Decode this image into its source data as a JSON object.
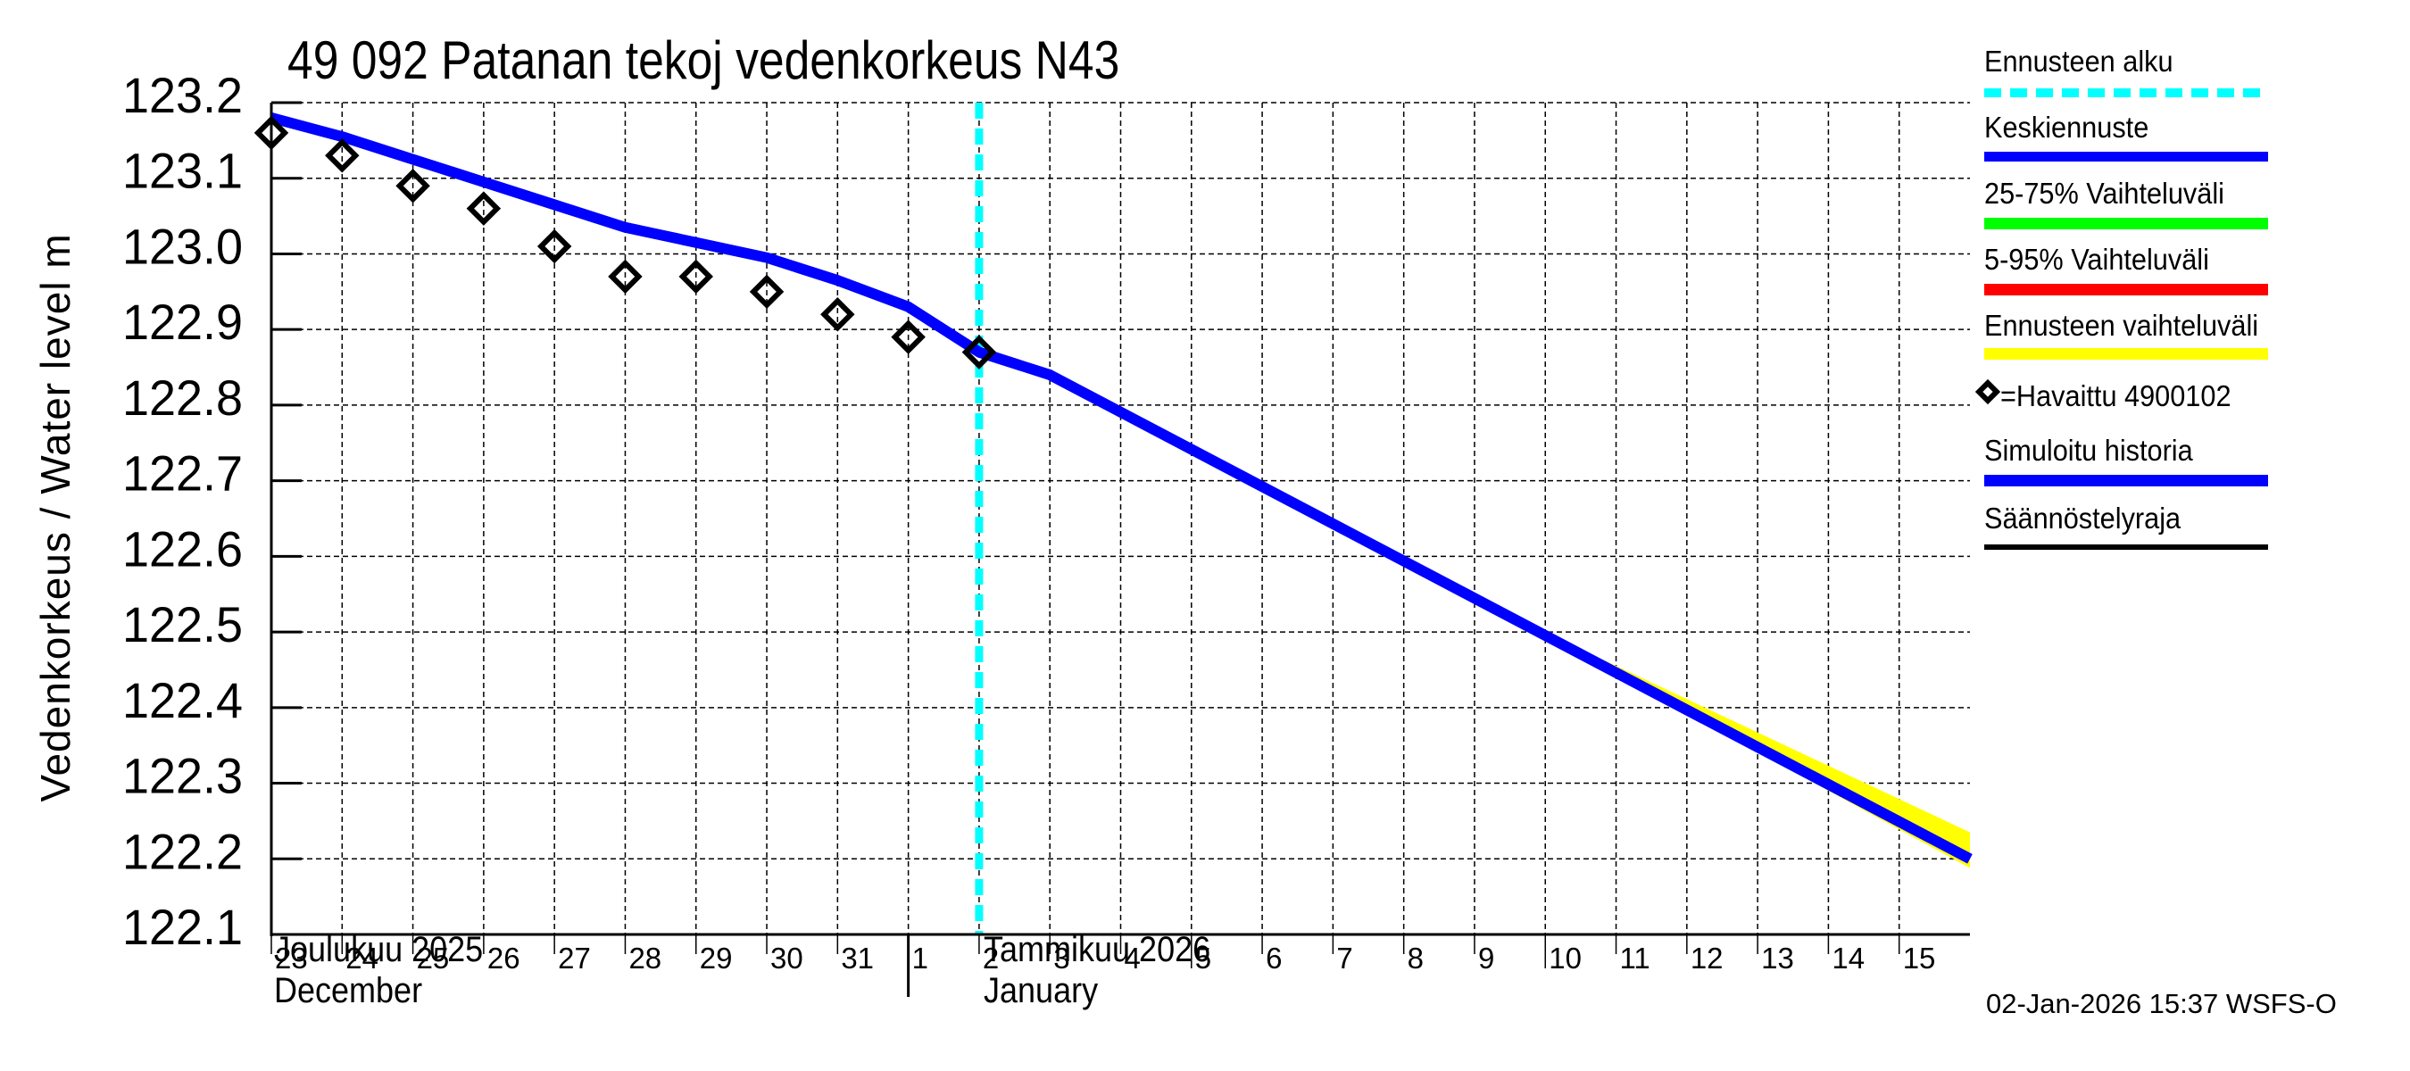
{
  "page": {
    "title": "49 092 Patanan tekoj vedenkorkeus N43",
    "y_axis_label": "Vedenkorkeus / Water level    m",
    "timestamp": "02-Jan-2026 15:37 WSFS-O",
    "months": [
      {
        "fi": "Joulukuu  2025",
        "en": "December"
      },
      {
        "fi": "Tammikuu  2026",
        "en": "January"
      }
    ]
  },
  "legend": {
    "items": [
      {
        "label": "Ennusteen alku",
        "color": "#00ffff",
        "style": "dashed"
      },
      {
        "label": "Keskiennuste",
        "color": "#0000ff",
        "style": "solid"
      },
      {
        "label": "25-75% Vaihteluväli",
        "color": "#00ff00",
        "style": "solid"
      },
      {
        "label": "5-95% Vaihteluväli",
        "color": "#ff0000",
        "style": "solid"
      },
      {
        "label": "Ennusteen vaihteluväli",
        "color": "#ffff00",
        "style": "solid"
      },
      {
        "label": "=Havaittu 4900102",
        "color": "#000000",
        "style": "diamond"
      },
      {
        "label": "Simuloitu historia",
        "color": "#0000ff",
        "style": "solid"
      },
      {
        "label": "Säännöstelyraja",
        "color": "#000000",
        "style": "thin"
      }
    ]
  },
  "chart_data": {
    "type": "line",
    "title": "49 092 Patanan tekoj vedenkorkeus N43",
    "xlabel": "",
    "ylabel": "Vedenkorkeus / Water level m",
    "ylim": [
      122.1,
      123.2
    ],
    "yticks": [
      "123.2",
      "123.1",
      "123.0",
      "122.9",
      "122.8",
      "122.7",
      "122.6",
      "122.5",
      "122.4",
      "122.3",
      "122.2",
      "122.1"
    ],
    "x_day_labels": [
      "23",
      "24",
      "25",
      "26",
      "27",
      "28",
      "29",
      "30",
      "31",
      "1",
      "2",
      "3",
      "4",
      "5",
      "6",
      "7",
      "8",
      "9",
      "10",
      "11",
      "12",
      "13",
      "14",
      "15"
    ],
    "x_range_days": [
      0,
      24
    ],
    "x_origin": "2025-12-23",
    "grid": true,
    "forecast_start_day": 10,
    "month_separator_day": 9,
    "series": [
      {
        "name": "Simuloitu historia / Keskiennuste",
        "color": "#0000ff",
        "x": [
          0,
          1,
          2,
          3,
          4,
          5,
          6,
          7,
          8,
          9,
          10,
          11,
          24
        ],
        "values": [
          123.18,
          123.155,
          123.125,
          123.095,
          123.065,
          123.035,
          123.015,
          122.995,
          122.965,
          122.93,
          122.87,
          122.84,
          122.2
        ]
      },
      {
        "name": "Ennusteen vaihteluväli (upper)",
        "color": "#ffff00",
        "x": [
          17.25,
          24
        ],
        "values": [
          122.545,
          122.235
        ]
      },
      {
        "name": "Havaittu 4900102",
        "color": "#000000",
        "marker": "diamond",
        "x": [
          0,
          1,
          2,
          3,
          4,
          5,
          6,
          7,
          8,
          9,
          10
        ],
        "values": [
          123.16,
          123.13,
          123.09,
          123.06,
          123.01,
          122.97,
          122.97,
          122.95,
          122.92,
          122.89,
          122.87
        ]
      }
    ]
  }
}
